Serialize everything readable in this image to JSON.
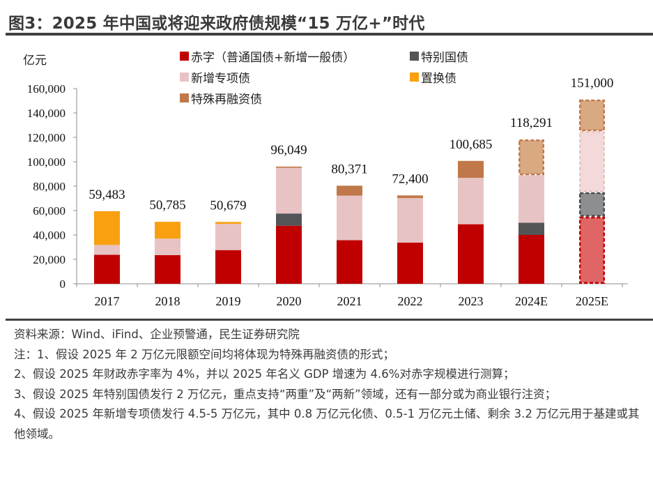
{
  "title": "图3：2025 年中国或将迎来政府债规模“15 万亿+”时代",
  "chart_data": {
    "type": "bar",
    "stacked": true,
    "title": "图3：2025 年中国或将迎来政府债规模“15 万亿+”时代",
    "ylabel": "亿元",
    "xlabel": "",
    "ylim": [
      0,
      160000
    ],
    "yticks": [
      0,
      20000,
      40000,
      60000,
      80000,
      100000,
      120000,
      140000,
      160000
    ],
    "ytick_labels": [
      "0",
      "20,000",
      "40,000",
      "60,000",
      "80,000",
      "100,000",
      "120,000",
      "140,000",
      "160,000"
    ],
    "categories": [
      "2017",
      "2018",
      "2019",
      "2020",
      "2021",
      "2022",
      "2023",
      "2024E",
      "2025E"
    ],
    "estimated_categories": [
      "2024E",
      "2025E"
    ],
    "totals": [
      59483,
      50785,
      50679,
      96049,
      80371,
      72400,
      100685,
      118291,
      151000
    ],
    "total_labels": [
      "59,483",
      "50,785",
      "50,679",
      "96,049",
      "80,371",
      "72,400",
      "100,685",
      "118,291",
      "151,000"
    ],
    "series": [
      {
        "name": "赤字（普通国债+新增一般债）",
        "color": "#c00000",
        "values": [
          23800,
          23500,
          27600,
          47600,
          35700,
          33700,
          48800,
          40000,
          55000
        ]
      },
      {
        "name": "特别国债",
        "color": "#545557",
        "values": [
          0,
          0,
          0,
          10000,
          0,
          0,
          0,
          10000,
          20000
        ]
      },
      {
        "name": "新增专项债",
        "color": "#e8c3c4",
        "values": [
          8000,
          13500,
          21500,
          37500,
          36500,
          36500,
          38000,
          39000,
          50000
        ]
      },
      {
        "name": "置换债",
        "color": "#f9a011",
        "values": [
          27683,
          13785,
          1579,
          0,
          0,
          0,
          0,
          0,
          0
        ]
      },
      {
        "name": "特殊再融资债",
        "color": "#c0784a",
        "values": [
          0,
          0,
          0,
          949,
          8171,
          2200,
          13885,
          29291,
          26000
        ]
      }
    ],
    "estimate_styles": {
      "2024E": {
        "dashed_series": [
          "特殊再融资债"
        ]
      },
      "2025E": {
        "dashed_series": [
          "赤字（普通国债+新增一般债）",
          "特别国债",
          "新增专项债",
          "特殊再融资债"
        ]
      }
    },
    "legend": [
      "赤字（普通国债+新增一般债）",
      "特别国债",
      "新增专项债",
      "置换债",
      "特殊再融资债"
    ],
    "legend_position": "top",
    "grid": false
  },
  "notes": {
    "source": "资料来源：Wind、iFind、企业预警通，民生证券研究院",
    "lines": [
      "注：1、假设 2025 年 2 万亿元限额空间均将体现为特殊再融资债的形式；",
      "2、假设 2025 年财政赤字率为 4%，并以 2025 年名义 GDP 增速为 4.6%对赤字规模进行测算；",
      "3、假设 2025 年特别国债发行 2 万亿元，重点支持“两重”及“两新”领域，还有一部分或为商业银行注资；",
      "4、假设 2025 年新增专项债发行 4.5-5 万亿元，其中 0.8 万亿元化债、0.5-1 万亿元土储、剩余 3.2 万亿元用于基建或其他领域。"
    ]
  }
}
